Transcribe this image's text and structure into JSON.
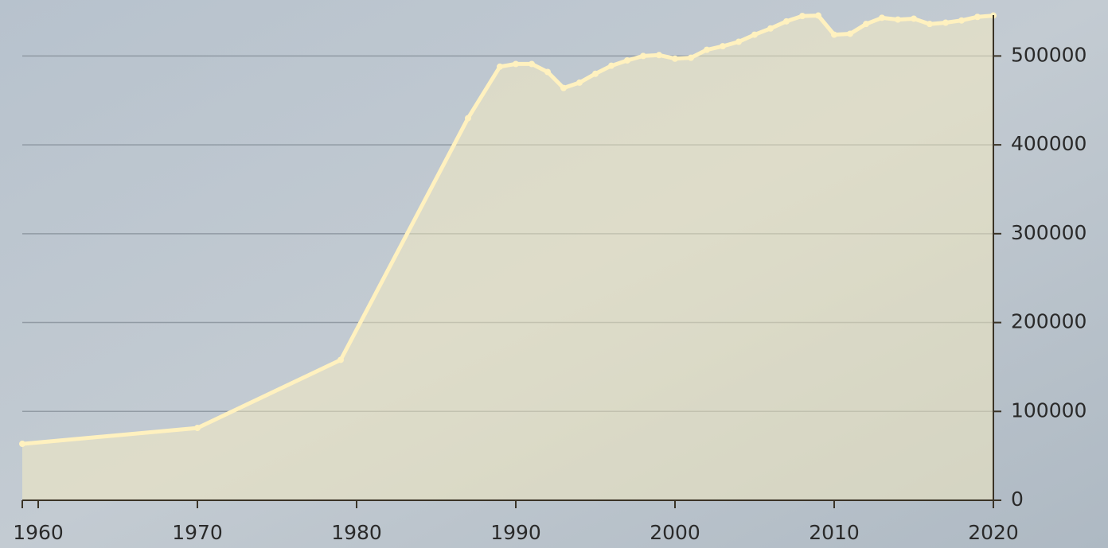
{
  "chart_data": {
    "type": "area",
    "x": [
      1959,
      1970,
      1979,
      1987,
      1989,
      1990,
      1991,
      1992,
      1993,
      1994,
      1995,
      1996,
      1997,
      1998,
      1999,
      2000,
      2001,
      2002,
      2003,
      2004,
      2005,
      2006,
      2007,
      2008,
      2009,
      2010,
      2011,
      2012,
      2013,
      2014,
      2015,
      2016,
      2017,
      2018,
      2019,
      2020
    ],
    "values": [
      63500,
      81400,
      158000,
      430000,
      488000,
      491000,
      491000,
      482000,
      464000,
      470000,
      480000,
      489000,
      495000,
      500000,
      501000,
      497000,
      498000,
      507000,
      511000,
      516000,
      524000,
      531000,
      539000,
      545000,
      545500,
      524000,
      525000,
      536000,
      543000,
      541000,
      542000,
      536000,
      537500,
      540000,
      544000,
      545500
    ],
    "color": "#fff1bf",
    "xlim": [
      1959,
      2020
    ],
    "xticks": [
      1960,
      1970,
      1980,
      1990,
      2000,
      2010,
      2020
    ],
    "ylim": [
      0,
      546000
    ],
    "yticks": [
      0,
      100000,
      200000,
      300000,
      400000,
      500000
    ],
    "grid": true
  }
}
